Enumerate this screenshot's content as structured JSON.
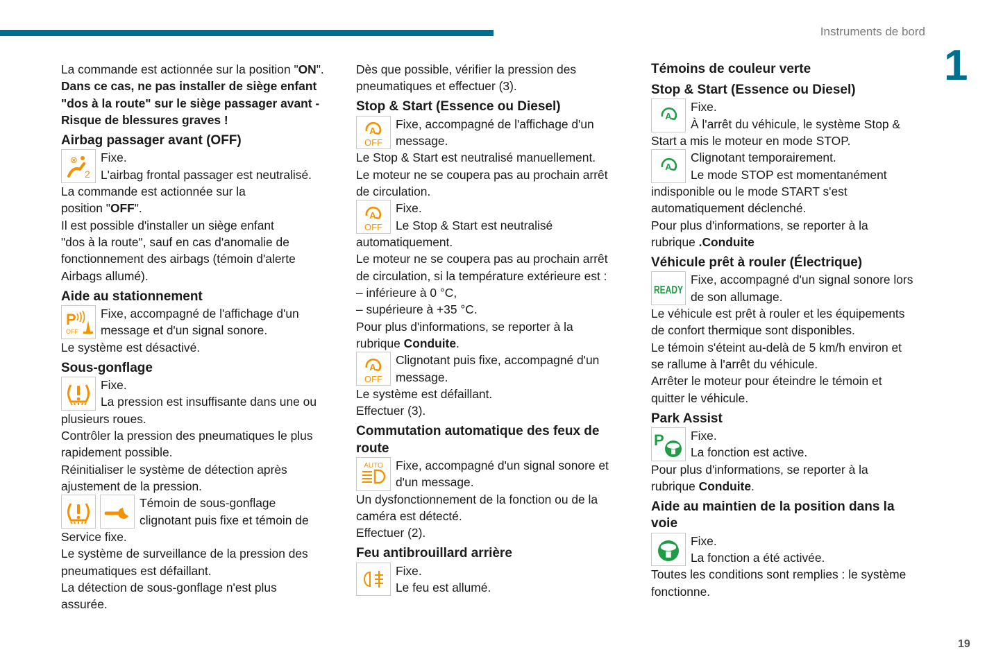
{
  "header": {
    "section_title": "Instruments de bord",
    "chapter": "1",
    "page_number": "19",
    "accent_color": "#006e8f"
  },
  "colors": {
    "orange": "#f39200",
    "green": "#1f9d45"
  },
  "columns": [
    {
      "blocks": [
        {
          "lines": [
            [
              "La commande est actionnée sur la position \"",
              {
                "b": "ON"
              },
              "\"."
            ],
            [
              {
                "b": "Dans ce cas, ne pas installer de siège enfant"
              }
            ],
            [
              {
                "b": "\"dos à la route\" sur le siège passager avant -"
              }
            ],
            [
              {
                "b": "Risque de blessures graves !"
              }
            ]
          ]
        },
        {
          "h": [
            "Airbag passager avant (OFF)"
          ]
        },
        {
          "icons": [
            "airbag-off-icon"
          ],
          "lines": [
            "Fixe.",
            "L'airbag frontal passager est neutralisé.",
            "La commande est actionnée sur la",
            [
              "position \"",
              {
                "b": "OFF"
              },
              "\"."
            ],
            "Il est possible d'installer un siège enfant",
            "\"dos à la route\", sauf en cas d'anomalie de",
            "fonctionnement des airbags (témoin d'alerte",
            "Airbags allumé)."
          ]
        },
        {
          "h": [
            "Aide au stationnement"
          ]
        },
        {
          "icons": [
            "park-sensors-off-icon"
          ],
          "lines": [
            "Fixe, accompagné de l'affichage d'un",
            "message et d'un signal sonore.",
            "Le système est désactivé."
          ]
        },
        {
          "h": [
            "Sous-gonflage"
          ]
        },
        {
          "icons": [
            "tyre-pressure-icon"
          ],
          "lines": [
            "Fixe.",
            "La pression est insuffisante dans une ou",
            "plusieurs roues.",
            "Contrôler la pression des pneumatiques le plus",
            "rapidement possible.",
            "Réinitialiser le système de détection après",
            "ajustement de la pression."
          ]
        },
        {
          "icons": [
            "tyre-pressure-icon",
            "service-wrench-icon"
          ],
          "lines": [
            "Témoin de sous-gonflage",
            "clignotant puis fixe et témoin de",
            "Service fixe.",
            "Le système de surveillance de la pression des",
            "pneumatiques est défaillant.",
            "La détection de sous-gonflage n'est plus",
            "assurée."
          ]
        }
      ]
    },
    {
      "blocks": [
        {
          "lines": [
            "Dès que possible, vérifier la pression des",
            "pneumatiques et effectuer (3)."
          ]
        },
        {
          "h": [
            "Stop & Start (Essence ou Diesel)"
          ]
        },
        {
          "icons": [
            "stop-start-off-icon"
          ],
          "lines": [
            "Fixe, accompagné de l'affichage d'un",
            "message.",
            "Le Stop & Start est neutralisé manuellement.",
            "Le moteur ne se coupera pas au prochain arrêt",
            "de circulation."
          ]
        },
        {
          "icons": [
            "stop-start-off-icon"
          ],
          "lines": [
            "Fixe.",
            "Le Stop & Start est neutralisé",
            "automatiquement.",
            "Le moteur ne se coupera pas au prochain arrêt",
            "de circulation, si la température extérieure est :",
            "–  inférieure à 0 °C,",
            "–  supérieure à +35 °C.",
            "Pour plus d'informations, se reporter à la",
            [
              "rubrique ",
              {
                "b": "Conduite"
              },
              "."
            ]
          ]
        },
        {
          "icons": [
            "stop-start-off-icon"
          ],
          "lines": [
            "Clignotant puis fixe, accompagné d'un",
            "message.",
            "Le système est défaillant.",
            "Effectuer (3)."
          ]
        },
        {
          "h": [
            "Commutation automatique des feux de",
            "route"
          ]
        },
        {
          "icons": [
            "auto-high-beam-icon"
          ],
          "lines": [
            "Fixe, accompagné d'un signal sonore et",
            "d'un message.",
            "Un dysfonctionnement de la fonction ou de la",
            "caméra est détecté.",
            "Effectuer (2)."
          ]
        },
        {
          "h": [
            "Feu antibrouillard arrière"
          ]
        },
        {
          "icons": [
            "rear-fog-light-icon"
          ],
          "lines": [
            "Fixe.",
            "Le feu est allumé."
          ]
        }
      ]
    },
    {
      "blocks": [
        {
          "h": [
            "Témoins de couleur verte"
          ],
          "first": true
        },
        {
          "h": [
            "Stop & Start (Essence ou Diesel)"
          ]
        },
        {
          "icons": [
            "stop-start-active-icon"
          ],
          "lines": [
            "Fixe.",
            "À l'arrêt du véhicule, le système Stop &",
            "Start a mis le moteur en mode STOP."
          ]
        },
        {
          "icons": [
            "stop-start-active-icon"
          ],
          "lines": [
            "Clignotant temporairement.",
            "Le mode STOP est momentanément",
            "indisponible ou le mode START s'est",
            "automatiquement déclenché.",
            "Pour plus d'informations, se reporter à la",
            [
              "rubrique ",
              {
                "b": ".Conduite"
              }
            ]
          ]
        },
        {
          "h": [
            "Véhicule prêt à rouler (Électrique)"
          ]
        },
        {
          "icons": [
            "ready-icon"
          ],
          "lines": [
            "Fixe, accompagné d'un signal sonore lors",
            "de son allumage.",
            "Le véhicule est prêt à rouler et les équipements",
            "de confort thermique sont disponibles.",
            "Le témoin s'éteint au-delà de 5 km/h environ et",
            "se rallume à l'arrêt du véhicule.",
            "Arrêter le moteur pour éteindre le témoin et",
            "quitter le véhicule."
          ]
        },
        {
          "h": [
            "Park Assist"
          ]
        },
        {
          "icons": [
            "park-assist-icon"
          ],
          "lines": [
            "Fixe.",
            "La fonction est active.",
            "Pour plus d'informations, se reporter à la",
            [
              "rubrique ",
              {
                "b": "Conduite"
              },
              "."
            ]
          ]
        },
        {
          "h": [
            "Aide au maintien de la position dans la",
            "voie"
          ]
        },
        {
          "icons": [
            "lane-keeping-icon"
          ],
          "lines": [
            "Fixe.",
            "La fonction a été activée.",
            "Toutes les conditions sont remplies : le système",
            "fonctionne."
          ]
        }
      ]
    }
  ]
}
